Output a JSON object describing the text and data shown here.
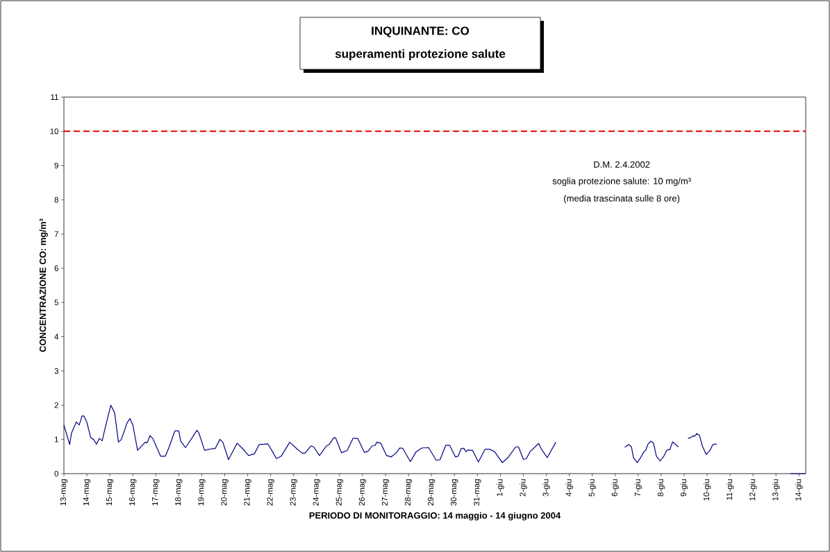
{
  "chart_data": {
    "type": "line",
    "title": "INQUINANTE: CO",
    "subtitle": "superamenti protezione salute",
    "xlabel": "PERIODO DI MONITORAGGIO: 14 maggio - 14 giugno 2004",
    "ylabel": "CONCENTRAZIONE CO: mg/m³",
    "annotations": [
      "D.M. 2.4.2002",
      "soglia protezione salute: 10 mg/m³",
      "(media trascinata sulle 8 ore)"
    ],
    "xlim": [
      "2004-05-13T00:00",
      "2004-06-14T07:00"
    ],
    "xticks": [
      {
        "value": "2004-05-13",
        "label": "13-mag"
      },
      {
        "value": "2004-05-14",
        "label": "14-mag"
      },
      {
        "value": "2004-05-15",
        "label": "15-mag"
      },
      {
        "value": "2004-05-16",
        "label": "16-mag"
      },
      {
        "value": "2004-05-17",
        "label": "17-mag"
      },
      {
        "value": "2004-05-18",
        "label": "18-mag"
      },
      {
        "value": "2004-05-19",
        "label": "19-mag"
      },
      {
        "value": "2004-05-20",
        "label": "20-mag"
      },
      {
        "value": "2004-05-21",
        "label": "21-mag"
      },
      {
        "value": "2004-05-22",
        "label": "22-mag"
      },
      {
        "value": "2004-05-23",
        "label": "23-mag"
      },
      {
        "value": "2004-05-24",
        "label": "24-mag"
      },
      {
        "value": "2004-05-25",
        "label": "25-mag"
      },
      {
        "value": "2004-05-26",
        "label": "26-mag"
      },
      {
        "value": "2004-05-27",
        "label": "27-mag"
      },
      {
        "value": "2004-05-28",
        "label": "28-mag"
      },
      {
        "value": "2004-05-29",
        "label": "29-mag"
      },
      {
        "value": "2004-05-30",
        "label": "30-mag"
      },
      {
        "value": "2004-05-31",
        "label": "31-mag"
      },
      {
        "value": "2004-06-01",
        "label": "1-giu"
      },
      {
        "value": "2004-06-02",
        "label": "2-giu"
      },
      {
        "value": "2004-06-03",
        "label": "3-giu"
      },
      {
        "value": "2004-06-04",
        "label": "4-giu"
      },
      {
        "value": "2004-06-05",
        "label": "5-giu"
      },
      {
        "value": "2004-06-06",
        "label": "6-giu"
      },
      {
        "value": "2004-06-07",
        "label": "7-giu"
      },
      {
        "value": "2004-06-08",
        "label": "8-giu"
      },
      {
        "value": "2004-06-09",
        "label": "9-giu"
      },
      {
        "value": "2004-06-10",
        "label": "10-giu"
      },
      {
        "value": "2004-06-11",
        "label": "11-giu"
      },
      {
        "value": "2004-06-12",
        "label": "12-giu"
      },
      {
        "value": "2004-06-13",
        "label": "13-giu"
      },
      {
        "value": "2004-06-14",
        "label": "14-giu"
      }
    ],
    "ylim": [
      0,
      11
    ],
    "yticks": [
      0,
      1,
      2,
      3,
      4,
      5,
      6,
      7,
      8,
      9,
      10,
      11
    ],
    "grid": false,
    "marker": "none",
    "line_style": "solid",
    "ref_lines": [
      {
        "axis": "y",
        "value": 10,
        "color": "#e00000",
        "line_style": "dashed"
      }
    ],
    "series": [
      {
        "color": "#000080",
        "x": [
          "2004-05-13T00:00",
          "2004-05-13T06:00",
          "2004-05-13T08:00",
          "2004-05-13T13:00",
          "2004-05-13T16:00",
          "2004-05-13T19:00",
          "2004-05-13T21:00",
          "2004-05-14T00:00",
          "2004-05-14T04:00",
          "2004-05-14T07:00",
          "2004-05-14T10:00",
          "2004-05-14T13:00",
          "2004-05-14T16:00",
          "2004-05-14T19:00",
          "2004-05-15T01:00",
          "2004-05-15T05:00",
          "2004-05-15T09:00",
          "2004-05-15T12:00",
          "2004-05-15T18:00",
          "2004-05-15T21:00",
          "2004-05-16T00:00",
          "2004-05-16T05:00",
          "2004-05-16T13:00",
          "2004-05-16T15:00",
          "2004-05-16T18:00",
          "2004-05-16T21:00",
          "2004-05-17T05:00",
          "2004-05-17T10:00",
          "2004-05-17T14:00",
          "2004-05-17T20:00",
          "2004-05-18T00:00",
          "2004-05-18T02:00",
          "2004-05-18T07:00",
          "2004-05-18T14:00",
          "2004-05-18T19:00",
          "2004-05-18T21:00",
          "2004-05-19T03:00",
          "2004-05-19T11:00",
          "2004-05-19T14:00",
          "2004-05-19T19:00",
          "2004-05-19T22:00",
          "2004-05-20T04:00",
          "2004-05-20T13:00",
          "2004-05-20T18:00",
          "2004-05-21T01:00",
          "2004-05-21T07:00",
          "2004-05-21T12:00",
          "2004-05-21T21:00",
          "2004-05-22T02:00",
          "2004-05-22T06:00",
          "2004-05-22T11:00",
          "2004-05-22T20:00",
          "2004-05-23T04:00",
          "2004-05-23T09:00",
          "2004-05-23T12:00",
          "2004-05-23T18:00",
          "2004-05-23T21:00",
          "2004-05-24T03:00",
          "2004-05-24T06:00",
          "2004-05-24T10:00",
          "2004-05-24T13:00",
          "2004-05-24T18:00",
          "2004-05-24T20:00",
          "2004-05-25T02:00",
          "2004-05-25T08:00",
          "2004-05-25T14:00",
          "2004-05-25T19:00",
          "2004-05-26T02:00",
          "2004-05-26T06:00",
          "2004-05-26T10:00",
          "2004-05-26T13:00",
          "2004-05-26T15:00",
          "2004-05-26T19:00",
          "2004-05-27T01:00",
          "2004-05-27T06:00",
          "2004-05-27T11:00",
          "2004-05-27T15:00",
          "2004-05-27T18:00",
          "2004-05-28T02:00",
          "2004-05-28T08:00",
          "2004-05-28T14:00",
          "2004-05-28T21:00",
          "2004-05-29T05:00",
          "2004-05-29T09:00",
          "2004-05-29T15:00",
          "2004-05-29T19:00",
          "2004-05-30T01:00",
          "2004-05-30T04:00",
          "2004-05-30T07:00",
          "2004-05-30T10:00",
          "2004-05-30T12:00",
          "2004-05-30T14:00",
          "2004-05-30T19:00",
          "2004-05-31T01:00",
          "2004-05-31T08:00",
          "2004-05-31T13:00",
          "2004-05-31T18:00",
          "2004-06-01T02:00",
          "2004-06-01T08:00",
          "2004-06-01T16:00",
          "2004-06-01T19:00",
          "2004-06-02T00:00",
          "2004-06-02T03:00",
          "2004-06-02T07:00",
          "2004-06-02T16:00",
          "2004-06-02T19:00",
          "2004-06-03T01:00",
          "2004-06-03T10:00",
          "2004-06-05T00:00",
          "2004-06-06T10:00",
          "2004-06-06T14:00",
          "2004-06-06T17:00",
          "2004-06-06T19:00",
          "2004-06-06T23:00",
          "2004-06-07T03:00",
          "2004-06-07T06:00",
          "2004-06-07T08:00",
          "2004-06-07T10:00",
          "2004-06-07T13:00",
          "2004-06-07T16:00",
          "2004-06-07T19:00",
          "2004-06-07T23:00",
          "2004-06-08T03:00",
          "2004-06-08T06:00",
          "2004-06-08T09:00",
          "2004-06-08T12:00",
          "2004-06-08T18:00",
          "2004-06-08T23:00",
          "2004-06-09T04:00",
          "2004-06-09T07:00",
          "2004-06-09T09:00",
          "2004-06-09T11:00",
          "2004-06-09T13:00",
          "2004-06-09T16:00",
          "2004-06-09T19:00",
          "2004-06-09T23:00",
          "2004-06-10T03:00",
          "2004-06-10T06:00",
          "2004-06-10T10:00",
          "2004-06-12T00:00",
          "2004-06-13T15:00",
          "2004-06-14T07:00"
        ],
        "values": [
          1.42,
          0.85,
          1.19,
          1.51,
          1.42,
          1.69,
          1.68,
          1.5,
          1.05,
          1.0,
          0.86,
          1.03,
          0.96,
          1.32,
          2.0,
          1.78,
          0.92,
          1.0,
          1.48,
          1.61,
          1.42,
          0.68,
          0.92,
          0.9,
          1.11,
          1.02,
          0.51,
          0.51,
          0.78,
          1.25,
          1.25,
          0.95,
          0.76,
          1.05,
          1.27,
          1.19,
          0.68,
          0.73,
          0.73,
          1.0,
          0.92,
          0.41,
          0.89,
          0.75,
          0.53,
          0.58,
          0.85,
          0.87,
          0.64,
          0.44,
          0.51,
          0.92,
          0.71,
          0.6,
          0.6,
          0.81,
          0.78,
          0.53,
          0.64,
          0.8,
          0.85,
          1.05,
          1.04,
          0.61,
          0.68,
          1.03,
          1.03,
          0.62,
          0.66,
          0.81,
          0.82,
          0.92,
          0.89,
          0.53,
          0.49,
          0.6,
          0.75,
          0.74,
          0.35,
          0.64,
          0.75,
          0.76,
          0.39,
          0.41,
          0.83,
          0.83,
          0.49,
          0.51,
          0.73,
          0.74,
          0.64,
          0.69,
          0.68,
          0.34,
          0.71,
          0.71,
          0.64,
          0.32,
          0.47,
          0.78,
          0.78,
          0.42,
          0.43,
          0.64,
          0.88,
          0.71,
          0.47,
          0.92,
          null,
          0.77,
          0.85,
          0.78,
          0.47,
          0.32,
          0.49,
          0.64,
          0.69,
          0.85,
          0.95,
          0.89,
          0.51,
          0.37,
          0.52,
          0.69,
          0.7,
          0.93,
          0.78,
          null,
          1.03,
          1.05,
          1.1,
          1.09,
          1.17,
          1.12,
          0.81,
          0.56,
          0.68,
          0.85,
          0.87,
          null,
          0,
          0
        ]
      }
    ]
  }
}
